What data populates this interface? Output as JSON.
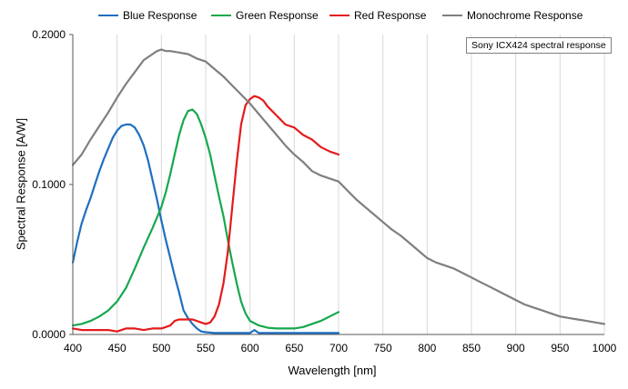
{
  "chart_data": {
    "type": "line",
    "annotation": "Sony ICX424 spectral response",
    "xlabel": "Wavelength [nm]",
    "ylabel": "Spectral Response [A/W]",
    "xlim": [
      400,
      1000
    ],
    "ylim": [
      0,
      0.2
    ],
    "x_ticks": [
      "400",
      "450",
      "500",
      "550",
      "600",
      "650",
      "700",
      "750",
      "800",
      "850",
      "900",
      "950",
      "1000"
    ],
    "y_ticks": [
      "0.0000",
      "0.1000",
      "0.2000"
    ],
    "grid": "vertical",
    "legend_position": "top",
    "series": [
      {
        "name": "Blue Response",
        "color": "#1f6fbf",
        "x": [
          400,
          405,
          410,
          415,
          420,
          425,
          430,
          435,
          440,
          445,
          450,
          455,
          460,
          465,
          470,
          475,
          480,
          485,
          490,
          495,
          500,
          505,
          510,
          515,
          520,
          525,
          530,
          535,
          540,
          545,
          550,
          560,
          570,
          580,
          590,
          600,
          605,
          610,
          620,
          630,
          640,
          650,
          660,
          670,
          680,
          690,
          700
        ],
        "y": [
          0.048,
          0.062,
          0.074,
          0.083,
          0.091,
          0.1,
          0.109,
          0.117,
          0.124,
          0.131,
          0.136,
          0.139,
          0.14,
          0.14,
          0.138,
          0.133,
          0.126,
          0.116,
          0.103,
          0.09,
          0.076,
          0.063,
          0.051,
          0.039,
          0.028,
          0.016,
          0.011,
          0.007,
          0.004,
          0.002,
          0.0015,
          0.001,
          0.001,
          0.001,
          0.001,
          0.001,
          0.003,
          0.001,
          0.001,
          0.001,
          0.001,
          0.001,
          0.001,
          0.001,
          0.001,
          0.001,
          0.001
        ]
      },
      {
        "name": "Green Response",
        "color": "#16a84e",
        "x": [
          400,
          410,
          420,
          430,
          440,
          450,
          460,
          470,
          480,
          490,
          500,
          505,
          510,
          515,
          520,
          525,
          530,
          535,
          540,
          545,
          550,
          555,
          560,
          565,
          570,
          575,
          580,
          585,
          590,
          595,
          600,
          610,
          620,
          630,
          640,
          650,
          660,
          670,
          680,
          690,
          700
        ],
        "y": [
          0.006,
          0.007,
          0.009,
          0.012,
          0.016,
          0.022,
          0.031,
          0.044,
          0.058,
          0.071,
          0.085,
          0.095,
          0.107,
          0.12,
          0.133,
          0.143,
          0.149,
          0.15,
          0.147,
          0.14,
          0.131,
          0.12,
          0.106,
          0.092,
          0.079,
          0.063,
          0.048,
          0.034,
          0.022,
          0.014,
          0.009,
          0.006,
          0.0045,
          0.004,
          0.004,
          0.004,
          0.005,
          0.007,
          0.009,
          0.012,
          0.015
        ]
      },
      {
        "name": "Red Response",
        "color": "#e41a1c",
        "x": [
          400,
          410,
          420,
          430,
          440,
          450,
          460,
          470,
          480,
          490,
          500,
          505,
          510,
          515,
          520,
          525,
          530,
          535,
          540,
          545,
          550,
          555,
          560,
          565,
          570,
          575,
          580,
          585,
          590,
          595,
          600,
          605,
          610,
          615,
          620,
          630,
          640,
          650,
          660,
          670,
          680,
          690,
          700
        ],
        "y": [
          0.004,
          0.003,
          0.003,
          0.003,
          0.003,
          0.002,
          0.004,
          0.004,
          0.003,
          0.004,
          0.004,
          0.005,
          0.006,
          0.009,
          0.01,
          0.01,
          0.01,
          0.01,
          0.009,
          0.008,
          0.007,
          0.008,
          0.012,
          0.02,
          0.034,
          0.055,
          0.085,
          0.115,
          0.14,
          0.153,
          0.157,
          0.159,
          0.158,
          0.156,
          0.152,
          0.146,
          0.14,
          0.138,
          0.133,
          0.13,
          0.125,
          0.122,
          0.12
        ]
      },
      {
        "name": "Monochrome Response",
        "color": "#7f7f7f",
        "x": [
          400,
          410,
          420,
          430,
          440,
          450,
          460,
          470,
          480,
          490,
          495,
          500,
          505,
          510,
          520,
          530,
          540,
          550,
          560,
          570,
          580,
          590,
          600,
          610,
          620,
          630,
          640,
          650,
          660,
          670,
          680,
          690,
          700,
          710,
          720,
          730,
          740,
          750,
          760,
          770,
          780,
          790,
          800,
          810,
          820,
          830,
          840,
          850,
          860,
          870,
          880,
          890,
          900,
          910,
          920,
          930,
          940,
          950,
          960,
          970,
          980,
          990,
          1000
        ],
        "y": [
          0.113,
          0.12,
          0.13,
          0.139,
          0.148,
          0.158,
          0.167,
          0.175,
          0.183,
          0.187,
          0.189,
          0.19,
          0.189,
          0.189,
          0.188,
          0.187,
          0.184,
          0.182,
          0.177,
          0.172,
          0.166,
          0.16,
          0.154,
          0.147,
          0.14,
          0.133,
          0.126,
          0.12,
          0.115,
          0.109,
          0.106,
          0.104,
          0.102,
          0.096,
          0.09,
          0.085,
          0.08,
          0.075,
          0.07,
          0.066,
          0.061,
          0.056,
          0.051,
          0.048,
          0.046,
          0.044,
          0.041,
          0.038,
          0.035,
          0.032,
          0.029,
          0.026,
          0.023,
          0.02,
          0.018,
          0.016,
          0.014,
          0.012,
          0.011,
          0.01,
          0.009,
          0.008,
          0.007
        ]
      }
    ]
  }
}
